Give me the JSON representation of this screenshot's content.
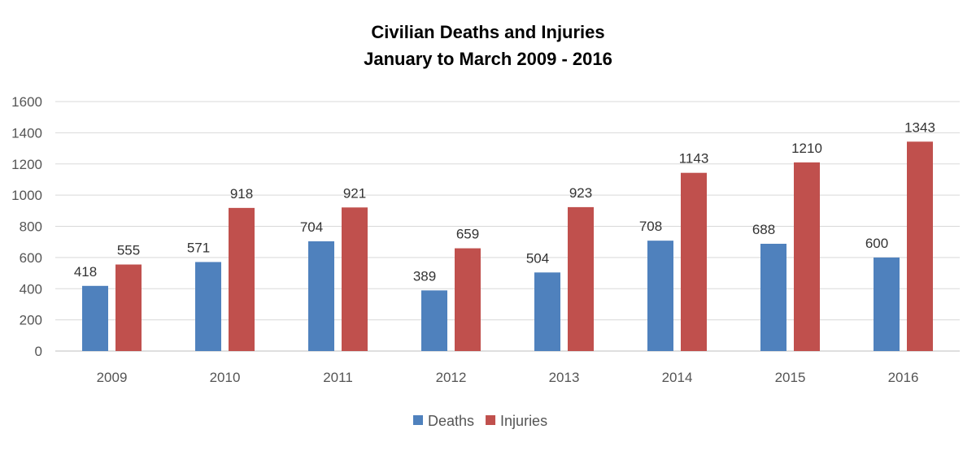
{
  "chart_data": {
    "type": "bar",
    "title": "Civilian Deaths and Injuries",
    "subtitle": "January to March 2009 - 2016",
    "xlabel": "",
    "ylabel": "",
    "ylim": [
      0,
      1600
    ],
    "yticks": [
      0,
      200,
      400,
      600,
      800,
      1000,
      1200,
      1400,
      1600
    ],
    "grid": true,
    "legend_position": "bottom",
    "categories": [
      "2009",
      "2010",
      "2011",
      "2012",
      "2013",
      "2014",
      "2015",
      "2016"
    ],
    "series": [
      {
        "name": "Deaths",
        "color": "#4F81BD",
        "values": [
          418,
          571,
          704,
          389,
          504,
          708,
          688,
          600
        ]
      },
      {
        "name": "Injuries",
        "color": "#C0504D",
        "values": [
          555,
          918,
          921,
          659,
          923,
          1143,
          1210,
          1343
        ]
      }
    ]
  }
}
